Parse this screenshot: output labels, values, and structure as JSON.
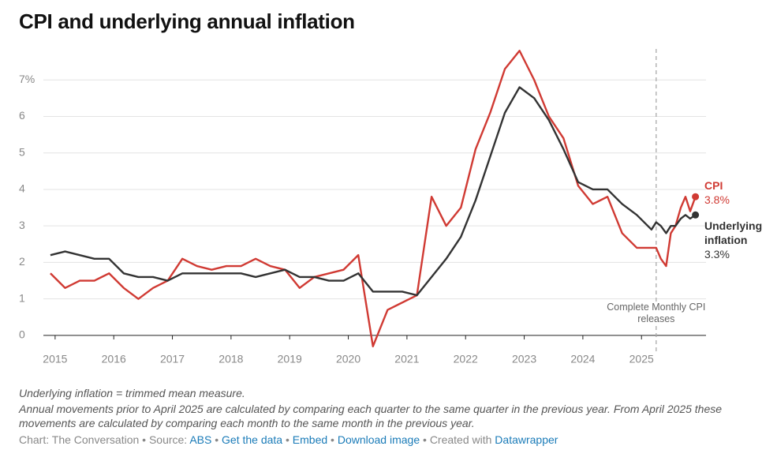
{
  "chart_data": {
    "type": "line",
    "title": "CPI and underlying annual inflation",
    "x": [
      2014.92,
      2015.17,
      2015.42,
      2015.67,
      2015.92,
      2016.17,
      2016.42,
      2016.67,
      2016.92,
      2017.17,
      2017.42,
      2017.67,
      2017.92,
      2018.17,
      2018.42,
      2018.67,
      2018.92,
      2019.17,
      2019.42,
      2019.67,
      2019.92,
      2020.17,
      2020.42,
      2020.67,
      2020.92,
      2021.17,
      2021.42,
      2021.67,
      2021.92,
      2022.17,
      2022.42,
      2022.67,
      2022.92,
      2023.17,
      2023.42,
      2023.67,
      2023.92,
      2024.17,
      2024.42,
      2024.67,
      2024.92,
      2025.17,
      2025.25,
      2025.33,
      2025.42,
      2025.5,
      2025.58,
      2025.67,
      2025.75,
      2025.83,
      2025.92
    ],
    "series": [
      {
        "name": "CPI",
        "color": "#d03a33",
        "values": [
          1.7,
          1.3,
          1.5,
          1.5,
          1.7,
          1.3,
          1.0,
          1.3,
          1.5,
          2.1,
          1.9,
          1.8,
          1.9,
          1.9,
          2.1,
          1.9,
          1.8,
          1.3,
          1.6,
          1.7,
          1.8,
          2.2,
          -0.3,
          0.7,
          0.9,
          1.1,
          3.8,
          3.0,
          3.5,
          5.1,
          6.1,
          7.3,
          7.8,
          7.0,
          6.0,
          5.4,
          4.1,
          3.6,
          3.8,
          2.8,
          2.4,
          2.4,
          2.4,
          2.1,
          1.9,
          2.8,
          3.0,
          3.5,
          3.8,
          3.4,
          3.8
        ],
        "value_labels": [
          null,
          null,
          null,
          null,
          null,
          null,
          null,
          null,
          null,
          null,
          null,
          null,
          null,
          null,
          null,
          null,
          null,
          null,
          null,
          null,
          null,
          null,
          null,
          null,
          null,
          null,
          null,
          null,
          null,
          null,
          null,
          null,
          null,
          null,
          null,
          null,
          null,
          null,
          null,
          null,
          null,
          null,
          null,
          null,
          null,
          null,
          null,
          null,
          null,
          null,
          "3.8%"
        ]
      },
      {
        "name": "Underlying inflation",
        "color": "#333333",
        "values": [
          2.2,
          2.3,
          2.2,
          2.1,
          2.1,
          1.7,
          1.6,
          1.6,
          1.5,
          1.7,
          1.7,
          1.7,
          1.7,
          1.7,
          1.6,
          1.7,
          1.8,
          1.6,
          1.6,
          1.5,
          1.5,
          1.7,
          1.2,
          1.2,
          1.2,
          1.1,
          1.6,
          2.1,
          2.7,
          3.7,
          4.9,
          6.1,
          6.8,
          6.5,
          5.9,
          5.1,
          4.2,
          4.0,
          4.0,
          3.6,
          3.3,
          2.9,
          3.1,
          3.0,
          2.8,
          3.0,
          3.0,
          3.2,
          3.3,
          3.2,
          3.3
        ],
        "value_labels": [
          null,
          null,
          null,
          null,
          null,
          null,
          null,
          null,
          null,
          null,
          null,
          null,
          null,
          null,
          null,
          null,
          null,
          null,
          null,
          null,
          null,
          null,
          null,
          null,
          null,
          null,
          null,
          null,
          null,
          null,
          null,
          null,
          null,
          null,
          null,
          null,
          null,
          null,
          null,
          null,
          null,
          null,
          null,
          null,
          null,
          null,
          null,
          null,
          null,
          null,
          "3.3%"
        ]
      }
    ],
    "xlim": [
      2014.8,
      2026.1
    ],
    "xticks": [
      2015,
      2016,
      2017,
      2018,
      2019,
      2020,
      2021,
      2022,
      2023,
      2024,
      2025
    ],
    "ylim": [
      -0.5,
      8
    ],
    "yticks": [
      0,
      1,
      2,
      3,
      4,
      5,
      6,
      {
        "value": 7,
        "label": "7%"
      }
    ],
    "grid": true,
    "annotation": {
      "x": 2025.25,
      "text": "Complete Monthly CPI releases"
    },
    "notes": [
      "Underlying inflation = trimmed mean measure.",
      "Annual movements prior to April 2025 are calculated by comparing each quarter to the same quarter in the previous year. From April 2025 these movements are calculated by comparing each month to the same month in the previous year."
    ],
    "credit": {
      "chart": "Chart: The Conversation",
      "source_label": "Source:",
      "source": "ABS",
      "links": [
        "Get the data",
        "Embed",
        "Download image"
      ],
      "created": "Created with",
      "tool": "Datawrapper"
    }
  }
}
